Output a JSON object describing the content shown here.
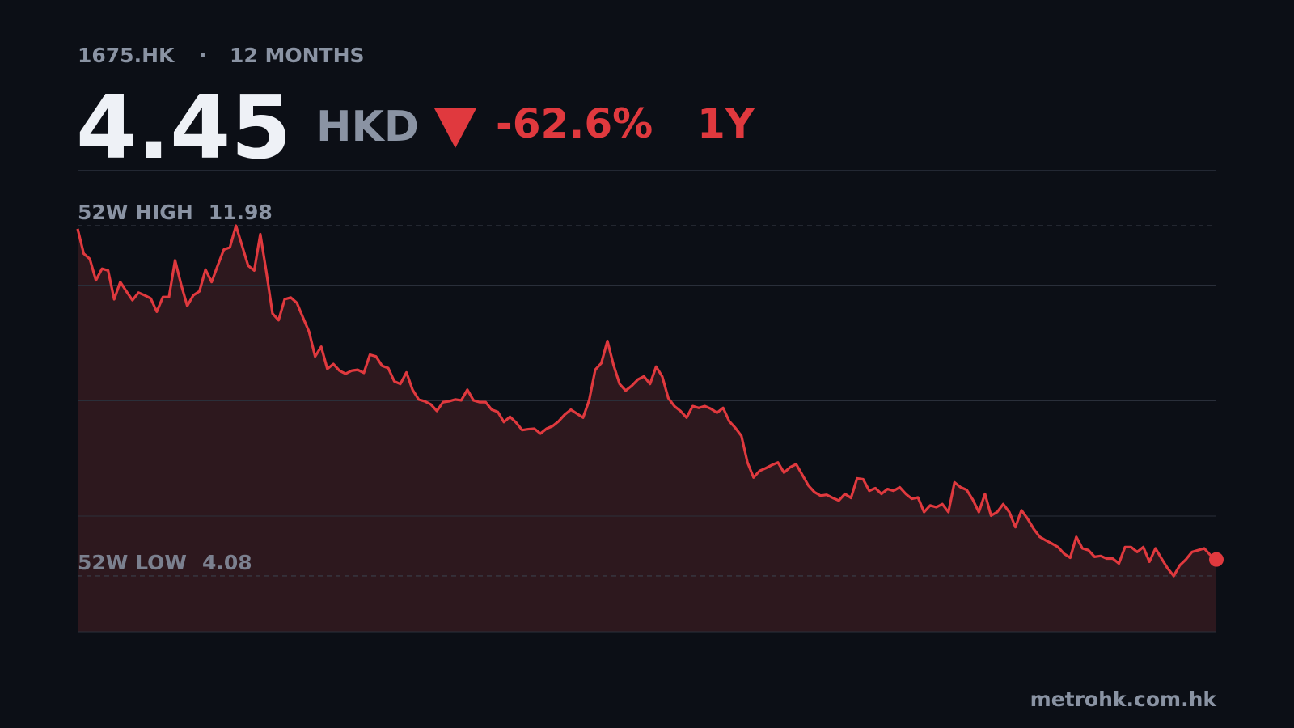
{
  "chart_data": {
    "type": "area",
    "symbol": "1675.HK",
    "separator": "·",
    "period": "12 MONTHS",
    "price": 4.45,
    "currency": "HKD",
    "change": "-62.6%",
    "change_period": "1Y",
    "source": "metrohk.com.hk",
    "color": "#e0393e",
    "fill": "#2d181e",
    "ylim": [
      2.82,
      13.24
    ],
    "yticks": [
      5.43,
      8.03,
      10.64
    ],
    "grid": true,
    "reference_lines": [
      {
        "label": "52W HIGH",
        "value": 11.98
      },
      {
        "label": "52W LOW",
        "value": 4.08
      }
    ],
    "values": [
      11.91,
      11.35,
      11.23,
      10.75,
      11.01,
      10.97,
      10.32,
      10.71,
      10.5,
      10.3,
      10.47,
      10.41,
      10.34,
      10.04,
      10.37,
      10.37,
      11.2,
      10.65,
      10.17,
      10.41,
      10.5,
      10.99,
      10.71,
      11.08,
      11.44,
      11.49,
      11.98,
      11.53,
      11.08,
      10.97,
      11.79,
      10.93,
      10.0,
      9.85,
      10.32,
      10.36,
      10.24,
      9.91,
      9.59,
      9.03,
      9.25,
      8.75,
      8.86,
      8.71,
      8.64,
      8.71,
      8.73,
      8.66,
      9.07,
      9.03,
      8.82,
      8.77,
      8.47,
      8.41,
      8.67,
      8.28,
      8.06,
      8.02,
      7.95,
      7.8,
      8.0,
      8.02,
      8.06,
      8.04,
      8.28,
      8.04,
      8.0,
      8.0,
      7.83,
      7.78,
      7.55,
      7.67,
      7.54,
      7.37,
      7.39,
      7.4,
      7.29,
      7.4,
      7.46,
      7.57,
      7.72,
      7.83,
      7.74,
      7.65,
      8.04,
      8.73,
      8.88,
      9.38,
      8.84,
      8.41,
      8.26,
      8.37,
      8.51,
      8.58,
      8.41,
      8.8,
      8.58,
      8.09,
      7.91,
      7.8,
      7.65,
      7.91,
      7.87,
      7.91,
      7.85,
      7.76,
      7.87,
      7.57,
      7.42,
      7.24,
      6.64,
      6.3,
      6.45,
      6.51,
      6.58,
      6.64,
      6.41,
      6.53,
      6.6,
      6.36,
      6.12,
      5.97,
      5.89,
      5.91,
      5.84,
      5.78,
      5.93,
      5.84,
      6.28,
      6.26,
      6.0,
      6.06,
      5.93,
      6.04,
      6.0,
      6.08,
      5.93,
      5.82,
      5.85,
      5.52,
      5.67,
      5.63,
      5.7,
      5.52,
      6.19,
      6.08,
      6.02,
      5.8,
      5.52,
      5.93,
      5.44,
      5.52,
      5.7,
      5.52,
      5.18,
      5.56,
      5.37,
      5.14,
      4.96,
      4.88,
      4.81,
      4.73,
      4.58,
      4.49,
      4.96,
      4.7,
      4.66,
      4.51,
      4.53,
      4.47,
      4.47,
      4.36,
      4.73,
      4.73,
      4.62,
      4.73,
      4.4,
      4.7,
      4.47,
      4.25,
      4.08,
      4.32,
      4.45,
      4.62,
      4.66,
      4.7,
      4.55,
      4.45
    ]
  }
}
